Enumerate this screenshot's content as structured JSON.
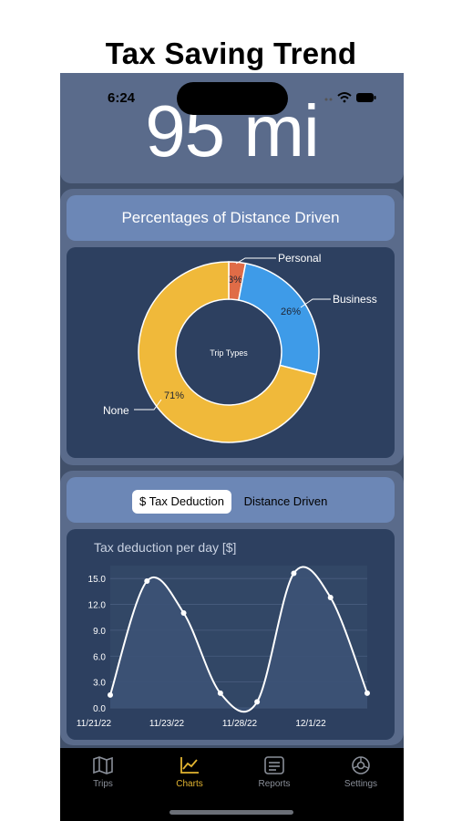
{
  "page": {
    "title": "Tax Saving Trend"
  },
  "status_bar": {
    "time": "6:24"
  },
  "header": {
    "distance": "95 mi"
  },
  "pie_panel": {
    "title": "Percentages of Distance Driven",
    "center_label": "Trip Types",
    "slices": [
      {
        "name": "Personal",
        "percent_label": "3%",
        "value": 3,
        "color": "#e06c47"
      },
      {
        "name": "Business",
        "percent_label": "26%",
        "value": 26,
        "color": "#3e9be8"
      },
      {
        "name": "None",
        "percent_label": "71%",
        "value": 71,
        "color": "#f0b93a"
      }
    ]
  },
  "line_panel": {
    "segments": {
      "active": "$ Tax Deduction",
      "inactive": "Distance Driven"
    },
    "chart_title": "Tax deduction per day [$]"
  },
  "chart_data": {
    "type": "line",
    "title": "Tax deduction per day [$]",
    "y_ticks": [
      "0.0",
      "3.0",
      "6.0",
      "9.0",
      "12.0",
      "15.0"
    ],
    "x_tick_labels": [
      "11/21/22",
      "11/23/22",
      "11/28/22",
      "12/1/22"
    ],
    "x": [
      0,
      1,
      2,
      3,
      4,
      5,
      6,
      7
    ],
    "values": [
      1.5,
      14.7,
      11.0,
      1.7,
      0.7,
      15.6,
      12.8,
      1.7
    ],
    "ylim": [
      0,
      16.5
    ],
    "line_color": "#ffffff",
    "grid": true
  },
  "tabbar": {
    "items": [
      {
        "label": "Trips",
        "icon": "map-icon",
        "active": false
      },
      {
        "label": "Charts",
        "icon": "chart-icon",
        "active": true
      },
      {
        "label": "Reports",
        "icon": "reports-icon",
        "active": false
      },
      {
        "label": "Settings",
        "icon": "settings-icon",
        "active": false
      }
    ]
  }
}
